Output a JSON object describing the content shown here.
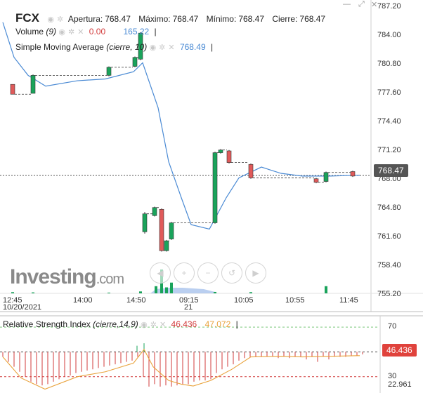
{
  "colors": {
    "up": "#1aa35b",
    "down": "#e05a5a",
    "line": "#4a8ad4",
    "rsi": "#e9a23b",
    "rsi_hist": "#d23b3b",
    "price_pill": "#555555",
    "rsi_pill": "#e0423c"
  },
  "window_buttons": {
    "minimize": "—",
    "maximize": "⤢",
    "close": "✕"
  },
  "legend": {
    "symbol": "FCX",
    "open_label": "Apertura:",
    "open": "768.47",
    "high_label": "Máximo:",
    "high": "768.47",
    "low_label": "Mínimo:",
    "low": "768.47",
    "close_label": "Cierre:",
    "close": "768.47",
    "volume_name": "Volume",
    "volume_param": "(9)",
    "volume_down": "0.00",
    "volume_ma": "165.22",
    "sma_name": "Simple Moving Average",
    "sma_param": "(cierre, 10)",
    "sma_value": "768.49"
  },
  "rsi_legend": {
    "name": "Relative Strength Index",
    "param": "(cierre,14,9)",
    "value": "46.436",
    "signal": "47.072"
  },
  "watermark": {
    "brand": "Investing",
    "suffix": ".com"
  },
  "toolbar_icons": [
    "scroll-left-icon",
    "zoom-in-icon",
    "zoom-out-icon",
    "zoom-reset-icon",
    "scroll-right-icon"
  ],
  "price_pill": "768.47",
  "rsi_pill": "46.436",
  "chart_data": [
    {
      "type": "candlestick",
      "x_ticks": [
        "12:45",
        "14:00",
        "14:50",
        "09:15",
        "10:05",
        "10:55",
        "11:45"
      ],
      "x_sub": {
        "12:45": "10/20/2021",
        "09:15": "21"
      },
      "y_ticks": [
        "787.20",
        "784.00",
        "780.80",
        "777.60",
        "774.40",
        "771.20",
        "768.00",
        "764.80",
        "761.60",
        "758.40",
        "755.20"
      ],
      "ylim": [
        755.2,
        787.2
      ],
      "last_price": 768.47,
      "candles": [
        {
          "x": 18,
          "o": 778.6,
          "c": 777.5,
          "h": 778.6,
          "l": 777.5
        },
        {
          "x": 47,
          "o": 777.6,
          "c": 779.6,
          "h": 779.7,
          "l": 777.6
        },
        {
          "x": 155,
          "o": 779.6,
          "c": 780.5,
          "h": 780.6,
          "l": 779.5
        },
        {
          "x": 192,
          "o": 780.6,
          "c": 781.6,
          "h": 781.7,
          "l": 780.5
        },
        {
          "x": 200,
          "o": 781.4,
          "c": 784.3,
          "h": 784.4,
          "l": 781.3
        },
        {
          "x": 206,
          "o": 762.2,
          "c": 764.2,
          "h": 764.4,
          "l": 762.0
        },
        {
          "x": 220,
          "o": 764.0,
          "c": 764.9,
          "h": 765.0,
          "l": 763.9
        },
        {
          "x": 230,
          "o": 764.7,
          "c": 760.1,
          "h": 764.8,
          "l": 760.0
        },
        {
          "x": 237,
          "o": 760.1,
          "c": 761.2,
          "h": 761.3,
          "l": 760.0
        },
        {
          "x": 244,
          "o": 761.4,
          "c": 763.2,
          "h": 763.3,
          "l": 761.3
        },
        {
          "x": 306,
          "o": 763.2,
          "c": 771.0,
          "h": 771.1,
          "l": 763.1
        },
        {
          "x": 314,
          "o": 771.0,
          "c": 771.3,
          "h": 771.4,
          "l": 770.9
        },
        {
          "x": 326,
          "o": 771.2,
          "c": 769.9,
          "h": 771.3,
          "l": 769.8
        },
        {
          "x": 357,
          "o": 769.7,
          "c": 768.2,
          "h": 769.8,
          "l": 768.1
        },
        {
          "x": 450,
          "o": 768.1,
          "c": 767.7,
          "h": 768.2,
          "l": 767.6
        },
        {
          "x": 464,
          "o": 767.8,
          "c": 768.8,
          "h": 768.9,
          "l": 767.7
        },
        {
          "x": 502,
          "o": 768.9,
          "c": 768.4,
          "h": 769.0,
          "l": 768.3
        }
      ],
      "sma": [
        [
          4,
          785.5
        ],
        [
          20,
          781.6
        ],
        [
          40,
          779.6
        ],
        [
          65,
          778.4
        ],
        [
          110,
          779.0
        ],
        [
          150,
          779.2
        ],
        [
          190,
          780.0
        ],
        [
          203,
          781.0
        ],
        [
          225,
          776.0
        ],
        [
          240,
          770.0
        ],
        [
          258,
          766.0
        ],
        [
          272,
          763.0
        ],
        [
          298,
          762.5
        ],
        [
          322,
          766.0
        ],
        [
          340,
          768.2
        ],
        [
          372,
          769.4
        ],
        [
          400,
          768.7
        ],
        [
          430,
          768.4
        ],
        [
          470,
          768.4
        ],
        [
          512,
          768.5
        ]
      ],
      "volume": [
        {
          "x": 18,
          "v": 0.05
        },
        {
          "x": 47,
          "v": 0.04
        },
        {
          "x": 155,
          "v": 0.03
        },
        {
          "x": 200,
          "v": 0.08
        },
        {
          "x": 222,
          "v": 0.3
        },
        {
          "x": 230,
          "v": 1.0
        },
        {
          "x": 237,
          "v": 0.25
        },
        {
          "x": 244,
          "v": 0.45
        },
        {
          "x": 306,
          "v": 0.06
        },
        {
          "x": 357,
          "v": 0.05
        },
        {
          "x": 464,
          "v": 0.3
        }
      ]
    },
    {
      "type": "line",
      "title": "Relative Strength Index",
      "y_ticks": [
        "70",
        "30",
        "22.961"
      ],
      "ylim": [
        18,
        78
      ],
      "levels": [
        70,
        50,
        30
      ],
      "rsi": [
        [
          4,
          46.0
        ],
        [
          30,
          29.0
        ],
        [
          64,
          20.0
        ],
        [
          110,
          30.0
        ],
        [
          150,
          34.0
        ],
        [
          190,
          41.0
        ],
        [
          205,
          52.0
        ],
        [
          218,
          38.0
        ],
        [
          240,
          27.0
        ],
        [
          258,
          24.0
        ],
        [
          275,
          22.5
        ],
        [
          300,
          27.0
        ],
        [
          330,
          36.0
        ],
        [
          357,
          46.0
        ],
        [
          400,
          46.5
        ],
        [
          430,
          46.0
        ],
        [
          470,
          46.5
        ],
        [
          512,
          47.0
        ]
      ],
      "hist": [
        [
          4,
          50.0,
          46.0
        ],
        [
          12,
          50.0,
          42.0
        ],
        [
          20,
          50.0,
          38.0
        ],
        [
          28,
          50.0,
          34.0
        ],
        [
          36,
          50.0,
          30.0
        ],
        [
          44,
          50.0,
          26.0
        ],
        [
          52,
          50.0,
          24.0
        ],
        [
          60,
          50.0,
          23.0
        ],
        [
          68,
          50.0,
          24.0
        ],
        [
          76,
          50.0,
          26.0
        ],
        [
          84,
          50.0,
          28.0
        ],
        [
          92,
          50.0,
          30.0
        ],
        [
          100,
          50.0,
          31.0
        ],
        [
          108,
          50.0,
          33.0
        ],
        [
          116,
          50.0,
          34.0
        ],
        [
          124,
          50.0,
          35.0
        ],
        [
          132,
          50.0,
          36.0
        ],
        [
          140,
          50.0,
          37.0
        ],
        [
          148,
          50.0,
          38.0
        ],
        [
          156,
          50.0,
          39.0
        ],
        [
          164,
          50.0,
          40.0
        ],
        [
          172,
          50.0,
          41.0
        ],
        [
          180,
          50.0,
          42.0
        ],
        [
          188,
          50.0,
          43.0
        ],
        [
          196,
          50.0,
          46.0
        ],
        [
          204,
          50.0,
          30.0
        ],
        [
          212,
          50.0,
          22.0
        ],
        [
          220,
          50.0,
          24.0
        ],
        [
          228,
          50.0,
          22.0
        ],
        [
          236,
          50.0,
          23.0
        ],
        [
          244,
          50.0,
          22.0
        ],
        [
          252,
          50.0,
          23.0
        ],
        [
          260,
          50.0,
          24.0
        ],
        [
          268,
          50.0,
          24.0
        ],
        [
          276,
          50.0,
          26.0
        ],
        [
          284,
          50.0,
          27.0
        ],
        [
          292,
          50.0,
          27.0
        ],
        [
          300,
          50.0,
          28.0
        ],
        [
          308,
          50.0,
          33.0
        ],
        [
          316,
          50.0,
          36.0
        ],
        [
          324,
          50.0,
          38.0
        ],
        [
          332,
          50.0,
          40.0
        ],
        [
          340,
          50.0,
          43.0
        ],
        [
          348,
          50.0,
          45.0
        ],
        [
          356,
          50.0,
          46.0
        ],
        [
          364,
          50.0,
          46.0
        ],
        [
          372,
          50.0,
          46.0
        ],
        [
          380,
          50.0,
          46.0
        ],
        [
          388,
          50.0,
          46.0
        ],
        [
          396,
          50.0,
          45.0
        ],
        [
          404,
          50.0,
          46.0
        ],
        [
          412,
          50.0,
          45.0
        ],
        [
          420,
          50.0,
          46.0
        ],
        [
          428,
          50.0,
          46.0
        ],
        [
          436,
          50.0,
          44.0
        ],
        [
          444,
          50.0,
          46.0
        ],
        [
          452,
          50.0,
          42.0
        ],
        [
          460,
          50.0,
          46.0
        ],
        [
          468,
          50.0,
          44.0
        ],
        [
          476,
          50.0,
          46.0
        ],
        [
          484,
          50.0,
          46.0
        ],
        [
          492,
          50.0,
          46.0
        ],
        [
          500,
          50.0,
          47.0
        ],
        [
          508,
          50.0,
          47.0
        ],
        [
          516,
          50.0,
          48.0
        ]
      ],
      "hist_up": [
        [
          195,
          50.0,
          55.0
        ],
        [
          205,
          50.0,
          57.0
        ]
      ]
    }
  ]
}
